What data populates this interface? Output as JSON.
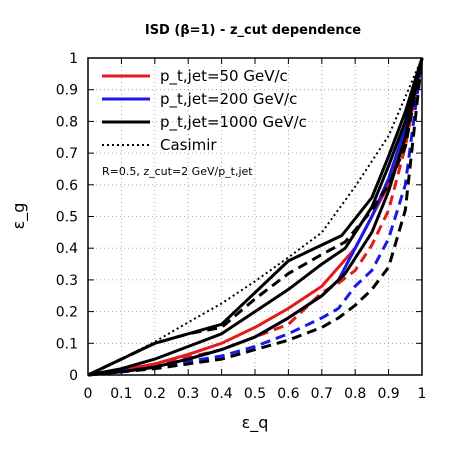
{
  "chart_data": {
    "type": "line",
    "title": "ISD (β=1) - z_cut dependence",
    "xlabel": "ε_q",
    "ylabel": "ε_g",
    "xlim": [
      0,
      1
    ],
    "ylim": [
      0,
      1
    ],
    "xticks": [
      "0",
      "0.1",
      "0.2",
      "0.3",
      "0.4",
      "0.5",
      "0.6",
      "0.7",
      "0.8",
      "0.9",
      "1"
    ],
    "yticks": [
      "0",
      "0.1",
      "0.2",
      "0.3",
      "0.4",
      "0.5",
      "0.6",
      "0.7",
      "0.8",
      "0.9",
      "1"
    ],
    "grid": true,
    "legend_position": "top-left",
    "annotation": "R=0.5, z_cut=2 GeV/p_t,jet",
    "legend": [
      {
        "label": "p_t,jet=50 GeV/c",
        "color": "#e41a1c",
        "style": "solid"
      },
      {
        "label": "p_t,jet=200 GeV/c",
        "color": "#1a1ae6",
        "style": "solid"
      },
      {
        "label": "p_t,jet=1000 GeV/c",
        "color": "#000000",
        "style": "solid"
      },
      {
        "label": "Casimir",
        "color": "#000000",
        "style": "dotted"
      }
    ],
    "series": [
      {
        "color": "#e41a1c",
        "style": "solid",
        "x": [
          0,
          0.1,
          0.2,
          0.3,
          0.4,
          0.5,
          0.6,
          0.7,
          0.8,
          0.9,
          0.95,
          1.0
        ],
        "y": [
          0,
          0.015,
          0.035,
          0.065,
          0.1,
          0.15,
          0.21,
          0.28,
          0.4,
          0.6,
          0.75,
          1.0
        ]
      },
      {
        "color": "#e41a1c",
        "style": "dashed",
        "x": [
          0,
          0.2,
          0.4,
          0.6,
          0.7,
          0.75,
          0.8,
          0.85,
          0.9,
          0.95,
          1.0
        ],
        "y": [
          0,
          0.03,
          0.08,
          0.16,
          0.26,
          0.29,
          0.33,
          0.41,
          0.52,
          0.72,
          1.0
        ]
      },
      {
        "color": "#1a1ae6",
        "style": "solid",
        "x": [
          0,
          0.1,
          0.2,
          0.3,
          0.4,
          0.5,
          0.6,
          0.7,
          0.75,
          0.8,
          0.85,
          0.9,
          0.95,
          1.0
        ],
        "y": [
          0,
          0.01,
          0.025,
          0.05,
          0.08,
          0.12,
          0.18,
          0.25,
          0.3,
          0.4,
          0.5,
          0.62,
          0.78,
          1.0
        ]
      },
      {
        "color": "#1a1ae6",
        "style": "dashed",
        "x": [
          0,
          0.2,
          0.4,
          0.5,
          0.6,
          0.7,
          0.75,
          0.8,
          0.85,
          0.9,
          0.95,
          1.0
        ],
        "y": [
          0,
          0.025,
          0.06,
          0.09,
          0.13,
          0.18,
          0.21,
          0.28,
          0.33,
          0.43,
          0.6,
          1.0
        ]
      },
      {
        "color": "#000000",
        "style": "solid",
        "x": [
          0,
          0.1,
          0.2,
          0.3,
          0.4,
          0.5,
          0.6,
          0.7,
          0.77,
          0.85,
          0.9,
          0.95,
          1.0
        ],
        "y": [
          0,
          0.02,
          0.05,
          0.09,
          0.13,
          0.2,
          0.27,
          0.35,
          0.4,
          0.53,
          0.66,
          0.8,
          1.0
        ]
      },
      {
        "color": "#000000",
        "style": "solid",
        "x": [
          0,
          0.1,
          0.2,
          0.3,
          0.4,
          0.5,
          0.6,
          0.7,
          0.77,
          0.85,
          0.9,
          0.95,
          1.0
        ],
        "y": [
          0,
          0.01,
          0.025,
          0.05,
          0.08,
          0.12,
          0.18,
          0.25,
          0.32,
          0.45,
          0.58,
          0.75,
          1.0
        ]
      },
      {
        "color": "#000000",
        "style": "solid",
        "x": [
          0,
          0.1,
          0.2,
          0.3,
          0.4,
          0.5,
          0.6,
          0.7,
          0.76,
          0.85,
          0.9,
          0.95,
          1.0
        ],
        "y": [
          0,
          0.05,
          0.1,
          0.13,
          0.16,
          0.26,
          0.36,
          0.41,
          0.44,
          0.56,
          0.69,
          0.83,
          1.0
        ]
      },
      {
        "color": "#000000",
        "style": "dashed",
        "x": [
          0,
          0.1,
          0.2,
          0.3,
          0.4,
          0.5,
          0.6,
          0.7,
          0.77,
          0.85,
          0.9,
          0.95,
          1.0
        ],
        "y": [
          0,
          0.05,
          0.1,
          0.13,
          0.15,
          0.24,
          0.32,
          0.38,
          0.42,
          0.52,
          0.6,
          0.72,
          1.0
        ]
      },
      {
        "color": "#000000",
        "style": "dashed",
        "x": [
          0,
          0.2,
          0.4,
          0.5,
          0.6,
          0.7,
          0.75,
          0.8,
          0.85,
          0.9,
          0.95,
          1.0
        ],
        "y": [
          0,
          0.02,
          0.05,
          0.08,
          0.11,
          0.15,
          0.18,
          0.22,
          0.27,
          0.34,
          0.52,
          1.0
        ]
      },
      {
        "color": "#000000",
        "style": "dotted",
        "x": [
          0,
          0.1,
          0.2,
          0.3,
          0.4,
          0.5,
          0.6,
          0.7,
          0.8,
          0.9,
          1.0
        ],
        "y": [
          0,
          0.0501,
          0.1047,
          0.1664,
          0.2255,
          0.2955,
          0.371,
          0.4496,
          0.5947,
          0.7547,
          1.0
        ]
      }
    ]
  }
}
